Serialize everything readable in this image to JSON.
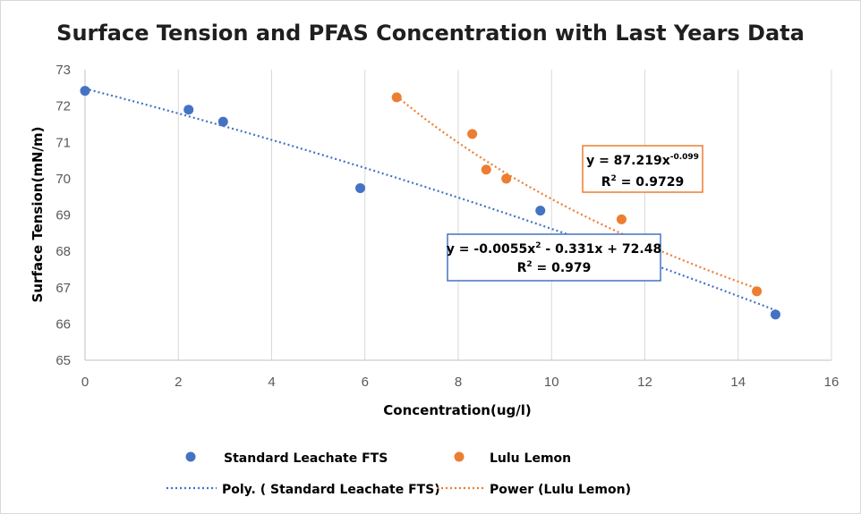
{
  "chart_data": {
    "type": "scatter",
    "title": "Surface Tension and PFAS Concentration with Last Years Data",
    "xlabel": "Concentration(ug/l)",
    "ylabel": "Surface Tension(mN/m)",
    "xlim": [
      0,
      16
    ],
    "ylim": [
      65,
      73
    ],
    "x_ticks": [
      "0",
      "2",
      "4",
      "6",
      "8",
      "10",
      "12",
      "14",
      "16"
    ],
    "y_ticks": [
      "65",
      "66",
      "67",
      "68",
      "69",
      "70",
      "71",
      "72",
      "73"
    ],
    "grid": "vertical",
    "series": [
      {
        "name": "Standard Leachate FTS",
        "color": "#4472c4",
        "x": [
          0,
          2.22,
          2.96,
          5.9,
          9.76,
          14.8
        ],
        "y": [
          72.42,
          71.9,
          71.57,
          69.74,
          69.12,
          66.26
        ]
      },
      {
        "name": "Lulu Lemon",
        "color": "#ed7d31",
        "x": [
          6.68,
          8.3,
          8.6,
          9.03,
          11.5,
          14.4
        ],
        "y": [
          72.24,
          71.23,
          70.25,
          70.0,
          68.88,
          66.9
        ]
      }
    ],
    "trendlines": [
      {
        "name": "Poly. ( Standard Leachate FTS)",
        "color": "#4472c4",
        "kind": "polynomial",
        "coefficients": {
          "a": -0.0055,
          "b": -0.331,
          "c": 72.48
        },
        "x_range": [
          0,
          14.8
        ],
        "equation": {
          "prefix": "y = -0.0055x",
          "sup": "2",
          "suffix": " - 0.331x + 72.48",
          "r2_prefix": "R",
          "r2_sup": "2",
          "r2_suffix": " = 0.979"
        }
      },
      {
        "name": "Power (Lulu Lemon)",
        "color": "#ed7d31",
        "kind": "power",
        "coefficients": {
          "a": 87.219,
          "b": -0.099
        },
        "x_range": [
          6.68,
          14.4
        ],
        "equation": {
          "prefix": "y = 87.219x",
          "sup": "-0.099",
          "suffix": "",
          "r2_prefix": "R",
          "r2_sup": "2",
          "r2_suffix": " = 0.9729"
        }
      }
    ],
    "legend": {
      "placement": "bottom",
      "items": [
        "Standard Leachate FTS",
        "Lulu Lemon",
        "Poly. ( Standard Leachate FTS)",
        "Power (Lulu Lemon)"
      ]
    }
  }
}
